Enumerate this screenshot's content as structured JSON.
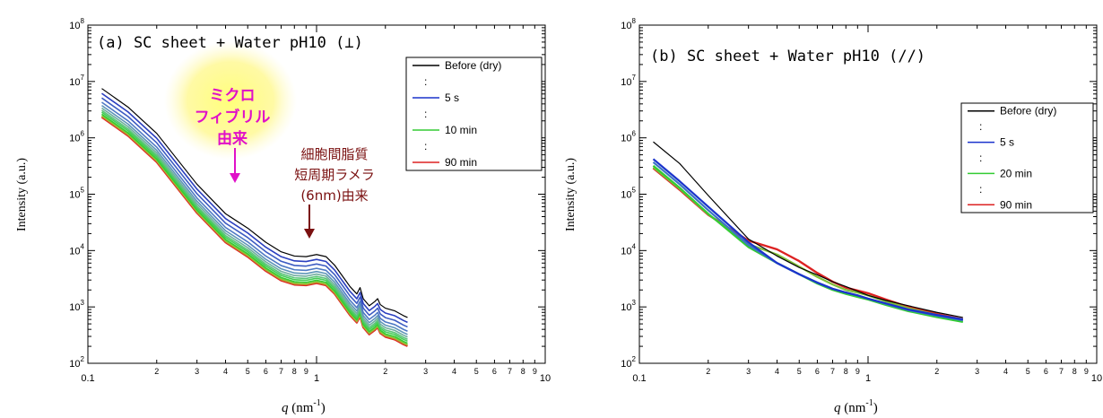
{
  "chart_data": [
    {
      "type": "line",
      "title": "(a)  SC sheet + Water pH10 (⊥)",
      "xlabel_var": "q",
      "xlabel_unit": " (nm",
      "xlabel_exp": "-1",
      "xlabel_close": ")",
      "ylabel": "Intensity (a.u.)",
      "xscale": "log",
      "yscale": "log",
      "xlim": [
        0.1,
        10
      ],
      "ylim": [
        100,
        100000000
      ],
      "x_decade_labels": [
        "0.1",
        "1",
        "10"
      ],
      "x_minor_labels": [
        "2",
        "3",
        "4",
        "5",
        "6",
        "7",
        "8",
        "9",
        "2",
        "3",
        "4",
        "5",
        "6",
        "7",
        "8",
        "9"
      ],
      "y_decade_labels": [
        {
          "base": "10",
          "exp": "2"
        },
        {
          "base": "10",
          "exp": "3"
        },
        {
          "base": "10",
          "exp": "4"
        },
        {
          "base": "10",
          "exp": "5"
        },
        {
          "base": "10",
          "exp": "6"
        },
        {
          "base": "10",
          "exp": "7"
        },
        {
          "base": "10",
          "exp": "8"
        }
      ],
      "legend": {
        "position": "top-right",
        "entries": [
          {
            "label": "Before (dry)",
            "color": "#000000",
            "line": true
          },
          {
            "label": ":",
            "color": "#000000",
            "line": false
          },
          {
            "label": "5 s",
            "color": "#1a33cc",
            "line": true
          },
          {
            "label": ":",
            "color": "#000000",
            "line": false
          },
          {
            "label": "10 min",
            "color": "#33cc33",
            "line": true
          },
          {
            "label": ":",
            "color": "#000000",
            "line": false
          },
          {
            "label": "90 min",
            "color": "#dd2222",
            "line": true
          }
        ]
      },
      "annotations": {
        "microfibril": [
          "ミクロ",
          "フィブリル",
          "由来"
        ],
        "lamella": [
          "細胞間脂質",
          "短周期ラメラ",
          "(6nm)由来"
        ]
      },
      "series": [
        {
          "role": "before",
          "color": "#000000",
          "scale": 1.0,
          "x": [
            0.115,
            0.15,
            0.2,
            0.3,
            0.4,
            0.5,
            0.6,
            0.7,
            0.8,
            0.9,
            1.0,
            1.1,
            1.2,
            1.3,
            1.4,
            1.5,
            1.55,
            1.6,
            1.7,
            1.8,
            1.85,
            1.9,
            2.0,
            2.2,
            2.4,
            2.5
          ],
          "y": [
            7500000,
            3500000,
            1200000,
            150000,
            45000,
            25000,
            14000,
            9500,
            8000,
            7800,
            8500,
            7800,
            5500,
            3500,
            2300,
            1700,
            2200,
            1400,
            1050,
            1250,
            1400,
            1100,
            950,
            850,
            700,
            650
          ]
        },
        {
          "role": "mid",
          "color": "#2b3fbf",
          "scale": 0.82
        },
        {
          "role": "mid",
          "color": "#3d5cc2",
          "scale": 0.68
        },
        {
          "role": "mid",
          "color": "#4f7ac4",
          "scale": 0.57
        },
        {
          "role": "mid",
          "color": "#5f96b8",
          "scale": 0.5
        },
        {
          "role": "mid",
          "color": "#6fae9e",
          "scale": 0.45
        },
        {
          "role": "mid",
          "color": "#5cc47a",
          "scale": 0.41
        },
        {
          "role": "mid",
          "color": "#44cc55",
          "scale": 0.38
        },
        {
          "role": "mid",
          "color": "#33cc33",
          "scale": 0.35
        },
        {
          "role": "mid",
          "color": "#8fbf3a",
          "scale": 0.33
        },
        {
          "role": "mid",
          "color": "#c88a2c",
          "scale": 0.32
        },
        {
          "role": "final",
          "color": "#dd2222",
          "scale": 0.31
        }
      ]
    },
    {
      "type": "line",
      "title": "(b)  SC sheet + Water pH10 (//)",
      "xlabel_var": "q",
      "xlabel_unit": " (nm",
      "xlabel_exp": "-1",
      "xlabel_close": ")",
      "ylabel": "Intensity (a.u.)",
      "xscale": "log",
      "yscale": "log",
      "xlim": [
        0.1,
        10
      ],
      "ylim": [
        100,
        100000000
      ],
      "x_decade_labels": [
        "0.1",
        "1",
        "10"
      ],
      "x_minor_labels": [
        "2",
        "3",
        "4",
        "5",
        "6",
        "7",
        "8",
        "9",
        "2",
        "3",
        "4",
        "5",
        "6",
        "7",
        "8",
        "9"
      ],
      "y_decade_labels": [
        {
          "base": "10",
          "exp": "2"
        },
        {
          "base": "10",
          "exp": "3"
        },
        {
          "base": "10",
          "exp": "4"
        },
        {
          "base": "10",
          "exp": "5"
        },
        {
          "base": "10",
          "exp": "6"
        },
        {
          "base": "10",
          "exp": "7"
        },
        {
          "base": "10",
          "exp": "8"
        }
      ],
      "legend": {
        "position": "top-right",
        "entries": [
          {
            "label": "Before (dry)",
            "color": "#000000",
            "line": true
          },
          {
            "label": ":",
            "color": "#000000",
            "line": false
          },
          {
            "label": "5 s",
            "color": "#1a33cc",
            "line": true
          },
          {
            "label": ":",
            "color": "#000000",
            "line": false
          },
          {
            "label": "20 min",
            "color": "#33cc33",
            "line": true
          },
          {
            "label": ":",
            "color": "#000000",
            "line": false
          },
          {
            "label": "90 min",
            "color": "#dd2222",
            "line": true
          }
        ]
      },
      "series": [
        {
          "role": "before",
          "color": "#000000",
          "x": [
            0.115,
            0.15,
            0.2,
            0.3,
            0.4,
            0.5,
            0.6,
            0.7,
            0.8,
            0.9,
            1.0,
            1.2,
            1.5,
            2.0,
            2.6
          ],
          "y": [
            850000,
            350000,
            95000,
            16000,
            8000,
            5000,
            3700,
            2800,
            2300,
            1900,
            1600,
            1300,
            1050,
            800,
            650
          ]
        },
        {
          "role": "early",
          "color": "#1a33cc",
          "x": [
            0.115,
            0.15,
            0.2,
            0.3,
            0.4,
            0.5,
            0.6,
            0.7,
            0.8,
            0.9,
            1.0,
            1.2,
            1.5,
            2.0,
            2.6
          ],
          "y": [
            420000,
            170000,
            60000,
            14000,
            6000,
            3800,
            2700,
            2100,
            1800,
            1600,
            1400,
            1150,
            900,
            720,
            600
          ]
        },
        {
          "role": "mid",
          "color": "#3b74c4",
          "x": [
            0.115,
            0.15,
            0.2,
            0.3,
            0.4,
            0.5,
            0.6,
            0.7,
            0.8,
            0.9,
            1.0,
            1.2,
            1.5,
            2.0,
            2.6
          ],
          "y": [
            370000,
            150000,
            52000,
            12500,
            6000,
            3800,
            2700,
            2100,
            1800,
            1600,
            1400,
            1130,
            880,
            700,
            580
          ]
        },
        {
          "role": "mid",
          "color": "#33cc33",
          "x": [
            0.115,
            0.15,
            0.2,
            0.3,
            0.4,
            0.5,
            0.6,
            0.7,
            0.8,
            0.9,
            1.0,
            1.2,
            1.5,
            2.0,
            2.6
          ],
          "y": [
            320000,
            130000,
            45000,
            11500,
            6000,
            3800,
            2600,
            2000,
            1700,
            1500,
            1350,
            1080,
            840,
            660,
            540
          ]
        },
        {
          "role": "mid",
          "color": "#7fbf3a",
          "x": [
            0.115,
            0.15,
            0.2,
            0.3,
            0.4,
            0.5,
            0.6,
            0.7,
            0.8,
            0.9,
            1.0,
            1.2,
            1.5,
            2.0,
            2.6
          ],
          "y": [
            300000,
            125000,
            44000,
            13000,
            8500,
            5200,
            3400,
            2500,
            2000,
            1800,
            1600,
            1250,
            950,
            720,
            580
          ]
        },
        {
          "role": "final",
          "color": "#dd2222",
          "x": [
            0.115,
            0.15,
            0.2,
            0.3,
            0.4,
            0.5,
            0.6,
            0.7,
            0.8,
            0.9,
            1.0,
            1.2,
            1.5,
            2.0,
            2.6
          ],
          "y": [
            290000,
            120000,
            43000,
            15000,
            10500,
            6500,
            4000,
            2800,
            2200,
            1950,
            1750,
            1350,
            1000,
            750,
            600
          ]
        }
      ]
    }
  ]
}
